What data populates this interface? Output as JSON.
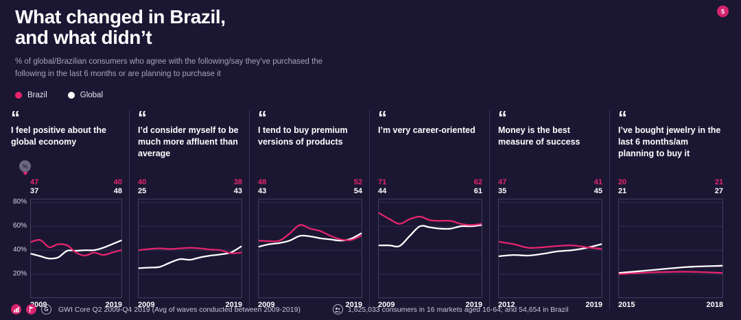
{
  "page": {
    "title_line1": "What changed in Brazil,",
    "title_line2": "and what didn’t",
    "subtitle": "% of global/Brazilian consumers who agree with the following/say they’ve purchased the following in the last 6 months or are planning to purchase it",
    "badge": "5"
  },
  "colors": {
    "background": "#1B1733",
    "brazil_pink": "#E6246E",
    "global_white": "#FFFFFF",
    "grid_line": "#332F50",
    "plot_border": "#403C60",
    "muted_text": "#A7A2BC"
  },
  "legend": {
    "items": [
      {
        "label": "Brazil",
        "color": "#E6246E"
      },
      {
        "label": "Global",
        "color": "#FFFFFF"
      }
    ]
  },
  "panels_common": {
    "quote_glyph": "“"
  },
  "chart_data": [
    {
      "type": "line",
      "title": "I feel positive about the global economy",
      "icon": "percent-pin",
      "x_start_label": "2009",
      "x_end_label": "2019",
      "ylim": [
        0,
        83
      ],
      "gridlines": [
        20,
        40,
        60,
        80
      ],
      "yticks": [
        {
          "v": 80,
          "label": "80%"
        },
        {
          "v": 60,
          "label": "60%"
        },
        {
          "v": 40,
          "label": "40%"
        },
        {
          "v": 20,
          "label": "20%"
        }
      ],
      "series": [
        {
          "name": "Brazil",
          "color": "#E6246E",
          "start_label": "47",
          "end_label": "40",
          "values": [
            47,
            48.5,
            42.5,
            45,
            44,
            38,
            35.5,
            38,
            36,
            38,
            40
          ]
        },
        {
          "name": "Global",
          "color": "#FFFFFF",
          "start_label": "37",
          "end_label": "48",
          "values": [
            37,
            35,
            33,
            34,
            39.5,
            39.5,
            40,
            40,
            42,
            45,
            48
          ]
        }
      ]
    },
    {
      "type": "line",
      "title": "I’d consider myself to be much more affluent than average",
      "x_start_label": "2009",
      "x_end_label": "2019",
      "ylim": [
        0,
        83
      ],
      "gridlines": [
        20,
        40,
        60,
        80
      ],
      "series": [
        {
          "name": "Brazil",
          "color": "#E6246E",
          "start_label": "40",
          "end_label": "38",
          "values": [
            40,
            41,
            41.5,
            41,
            41.5,
            42,
            41.5,
            40.5,
            40,
            37.5,
            38
          ]
        },
        {
          "name": "Global",
          "color": "#FFFFFF",
          "start_label": "25",
          "end_label": "43",
          "values": [
            25,
            25.5,
            26,
            29.5,
            32.5,
            32,
            34,
            35.5,
            36.5,
            38,
            43
          ]
        }
      ]
    },
    {
      "type": "line",
      "title": "I tend to buy premium versions of products",
      "x_start_label": "2009",
      "x_end_label": "2019",
      "ylim": [
        0,
        83
      ],
      "gridlines": [
        20,
        40,
        60,
        80
      ],
      "series": [
        {
          "name": "Brazil",
          "color": "#E6246E",
          "start_label": "48",
          "end_label": "52",
          "values": [
            48,
            47.5,
            48,
            54,
            61,
            58,
            56,
            52,
            49,
            48.5,
            52
          ]
        },
        {
          "name": "Global",
          "color": "#FFFFFF",
          "start_label": "43",
          "end_label": "54",
          "values": [
            43,
            45,
            46,
            48,
            52,
            51.5,
            50,
            49,
            48,
            49.5,
            54
          ]
        }
      ]
    },
    {
      "type": "line",
      "title": "I’m very career-oriented",
      "x_start_label": "2009",
      "x_end_label": "2019",
      "ylim": [
        0,
        83
      ],
      "gridlines": [
        20,
        40,
        60,
        80
      ],
      "series": [
        {
          "name": "Brazil",
          "color": "#E6246E",
          "start_label": "71",
          "end_label": "62",
          "values": [
            71,
            66,
            62,
            66,
            68,
            65,
            64.5,
            64.5,
            62,
            61,
            62
          ]
        },
        {
          "name": "Global",
          "color": "#FFFFFF",
          "start_label": "44",
          "end_label": "61",
          "values": [
            44,
            44,
            43.5,
            52,
            60,
            59,
            58,
            58,
            60,
            60,
            61
          ]
        }
      ]
    },
    {
      "type": "line",
      "title": "Money is the best measure of success",
      "x_start_label": "2012",
      "x_end_label": "2019",
      "ylim": [
        0,
        83
      ],
      "gridlines": [
        20,
        40,
        60,
        80
      ],
      "series": [
        {
          "name": "Brazil",
          "color": "#E6246E",
          "start_label": "47",
          "end_label": "41",
          "values": [
            47,
            45,
            42,
            42.5,
            43.5,
            44,
            42.5,
            41
          ]
        },
        {
          "name": "Global",
          "color": "#FFFFFF",
          "start_label": "35",
          "end_label": "45",
          "values": [
            35,
            36,
            35.5,
            37,
            39,
            40,
            42,
            45
          ]
        }
      ]
    },
    {
      "type": "line",
      "title": "I’ve bought jewelry in the last 6 months/am planning to buy it",
      "x_start_label": "2015",
      "x_end_label": "2018",
      "ylim": [
        0,
        83
      ],
      "gridlines": [
        20,
        40,
        60,
        80
      ],
      "series": [
        {
          "name": "Brazil",
          "color": "#E6246E",
          "start_label": "20",
          "end_label": "21",
          "values": [
            20,
            21.5,
            22,
            21
          ]
        },
        {
          "name": "Global",
          "color": "#FFFFFF",
          "start_label": "21",
          "end_label": "27",
          "values": [
            21,
            23.5,
            26,
            27
          ]
        }
      ]
    }
  ],
  "footer": {
    "source": "GWI Core Q2 2009-Q4 2019 (Avg of waves conducted between 2009-2019)",
    "base": "1,625,033 consumers in 16 markets aged 16-64; and 54,654 in Brazil",
    "icons": [
      "chart-icon",
      "flag-icon",
      "gwi-logo-icon",
      "audience-icon"
    ]
  }
}
